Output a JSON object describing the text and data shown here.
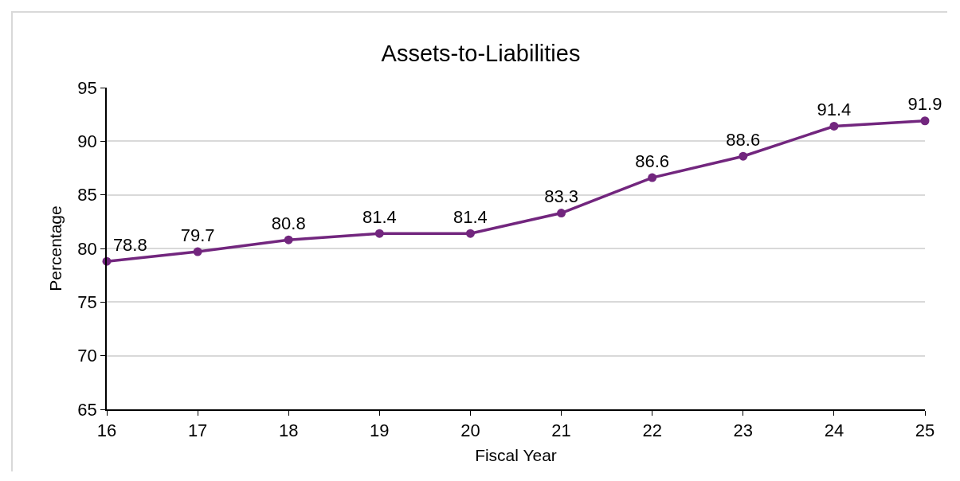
{
  "chart_data": {
    "type": "line",
    "title": "Assets-to-Liabilities",
    "xlabel": "Fiscal Year",
    "ylabel": "Percentage",
    "x": [
      16,
      17,
      18,
      19,
      20,
      21,
      22,
      23,
      24,
      25
    ],
    "series": [
      {
        "color": "#72267e",
        "values": [
          78.8,
          79.7,
          80.8,
          81.4,
          81.4,
          83.3,
          86.6,
          88.6,
          91.4,
          91.9
        ]
      }
    ],
    "xlim": [
      16,
      25
    ],
    "xticks": [
      16,
      17,
      18,
      19,
      20,
      21,
      22,
      23,
      24,
      25
    ],
    "ylim": [
      65,
      95
    ],
    "yticks": [
      65,
      70,
      75,
      80,
      85,
      90,
      95
    ],
    "grid": "y",
    "marker": "circle",
    "line_style": "solid",
    "data_labels": true
  }
}
